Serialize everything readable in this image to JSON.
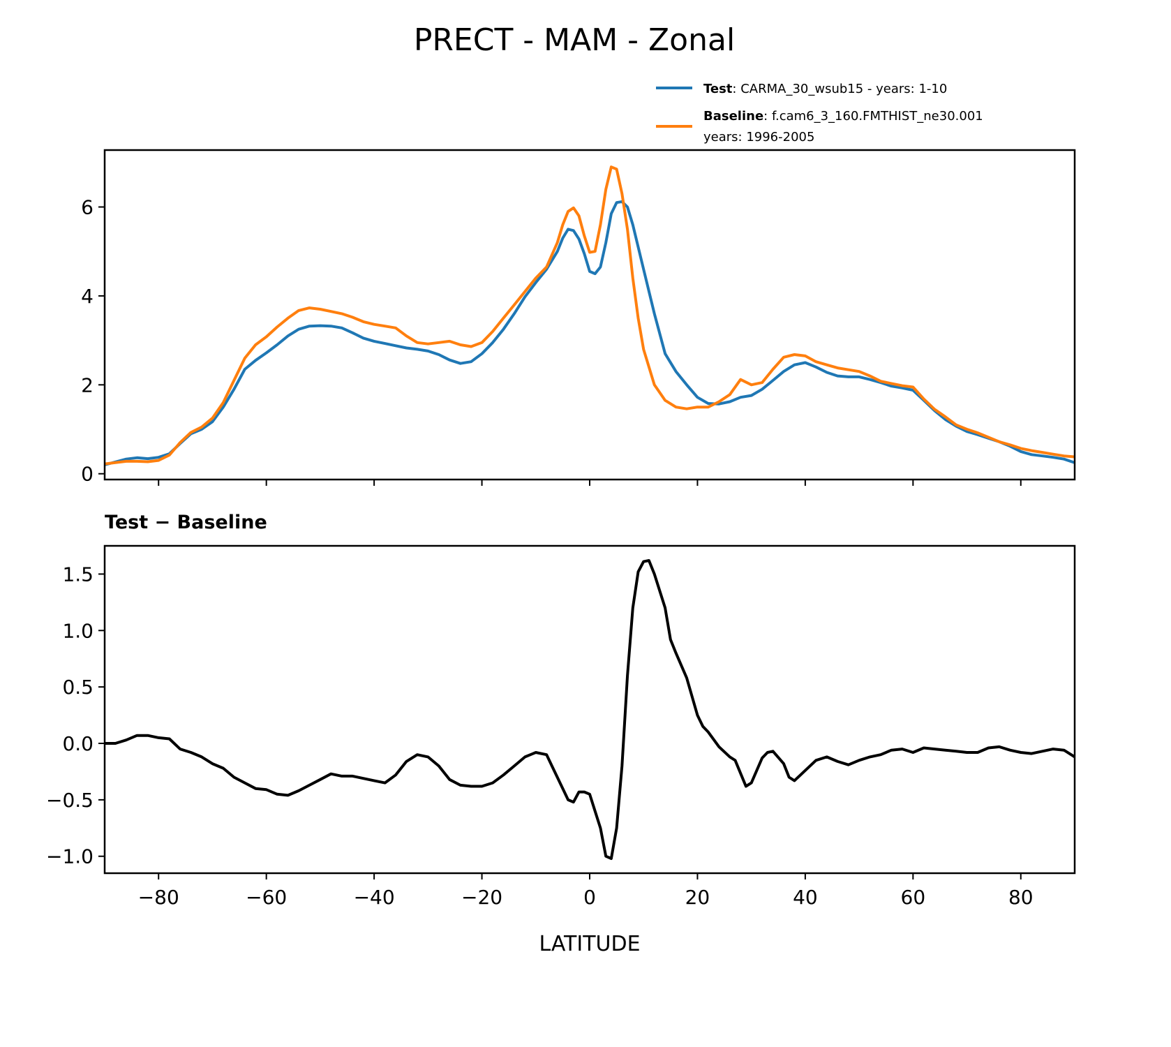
{
  "title": "PRECT - MAM - Zonal",
  "legend": {
    "test_label": "Test",
    "test_desc": ": CARMA_30_wsub15 - years: 1-10",
    "baseline_label": "Baseline",
    "baseline_desc": ": f.cam6_3_160.FMTHIST_ne30.001",
    "baseline_desc2": "years: 1996-2005"
  },
  "colors": {
    "test": "#1f77b4",
    "baseline": "#ff7f0e",
    "diff": "#000000"
  },
  "chart_data": [
    {
      "type": "line",
      "xlim": [
        -90,
        90
      ],
      "ylim": [
        -0.13,
        7.28
      ],
      "yticks": [
        0,
        2,
        4,
        6
      ],
      "ytick_labels": [
        "0",
        "2",
        "4",
        "6"
      ],
      "xticks": [
        -80,
        -60,
        -40,
        -20,
        0,
        20,
        40,
        60,
        80
      ],
      "legend_position": "above-right",
      "grid": false,
      "series": [
        {
          "name": "Test",
          "x": [
            -90,
            -86,
            -84,
            -82,
            -80,
            -78,
            -76,
            -74,
            -72,
            -70,
            -68,
            -66,
            -64,
            -62,
            -60,
            -58,
            -56,
            -54,
            -52,
            -50,
            -48,
            -46,
            -44,
            -42,
            -40,
            -38,
            -36,
            -34,
            -32,
            -30,
            -28,
            -26,
            -24,
            -22,
            -20,
            -18,
            -16,
            -14,
            -12,
            -10,
            -8,
            -6,
            -5,
            -4,
            -3,
            -2,
            -1,
            0,
            1,
            2,
            3,
            4,
            5,
            6,
            7,
            8,
            10,
            12,
            14,
            16,
            18,
            20,
            22,
            24,
            26,
            28,
            30,
            32,
            34,
            36,
            38,
            40,
            42,
            44,
            46,
            48,
            50,
            52,
            54,
            56,
            58,
            60,
            62,
            64,
            66,
            68,
            70,
            72,
            74,
            76,
            78,
            80,
            82,
            84,
            86,
            88,
            90
          ],
          "y": [
            0.2,
            0.33,
            0.36,
            0.34,
            0.37,
            0.45,
            0.68,
            0.9,
            1.0,
            1.17,
            1.5,
            1.9,
            2.35,
            2.55,
            2.72,
            2.9,
            3.1,
            3.25,
            3.32,
            3.33,
            3.32,
            3.28,
            3.17,
            3.05,
            2.98,
            2.93,
            2.88,
            2.83,
            2.8,
            2.76,
            2.68,
            2.56,
            2.48,
            2.52,
            2.7,
            2.95,
            3.25,
            3.6,
            3.98,
            4.3,
            4.6,
            5.0,
            5.3,
            5.5,
            5.47,
            5.28,
            4.95,
            4.55,
            4.5,
            4.65,
            5.2,
            5.85,
            6.1,
            6.12,
            6.0,
            5.6,
            4.6,
            3.6,
            2.7,
            2.3,
            2.0,
            1.72,
            1.58,
            1.57,
            1.62,
            1.72,
            1.76,
            1.9,
            2.1,
            2.3,
            2.45,
            2.5,
            2.4,
            2.28,
            2.2,
            2.18,
            2.18,
            2.12,
            2.05,
            1.97,
            1.93,
            1.88,
            1.65,
            1.42,
            1.22,
            1.07,
            0.95,
            0.88,
            0.8,
            0.72,
            0.62,
            0.5,
            0.43,
            0.4,
            0.37,
            0.33,
            0.25
          ]
        },
        {
          "name": "Baseline",
          "x": [
            -90,
            -86,
            -84,
            -82,
            -80,
            -78,
            -76,
            -74,
            -72,
            -70,
            -68,
            -66,
            -64,
            -62,
            -60,
            -58,
            -56,
            -54,
            -52,
            -50,
            -48,
            -46,
            -44,
            -42,
            -40,
            -38,
            -36,
            -34,
            -32,
            -30,
            -28,
            -26,
            -24,
            -22,
            -20,
            -18,
            -16,
            -14,
            -12,
            -10,
            -8,
            -6,
            -5,
            -4,
            -3,
            -2,
            -1,
            0,
            1,
            2,
            3,
            4,
            5,
            6,
            7,
            8,
            9,
            10,
            12,
            14,
            16,
            18,
            20,
            22,
            24,
            26,
            28,
            30,
            32,
            34,
            36,
            38,
            40,
            42,
            44,
            46,
            48,
            50,
            52,
            54,
            56,
            58,
            60,
            62,
            64,
            66,
            68,
            70,
            72,
            74,
            76,
            78,
            80,
            82,
            84,
            86,
            88,
            90
          ],
          "y": [
            0.22,
            0.28,
            0.28,
            0.27,
            0.3,
            0.42,
            0.7,
            0.93,
            1.05,
            1.25,
            1.6,
            2.1,
            2.6,
            2.9,
            3.08,
            3.3,
            3.5,
            3.67,
            3.73,
            3.7,
            3.65,
            3.6,
            3.52,
            3.42,
            3.36,
            3.32,
            3.28,
            3.1,
            2.95,
            2.92,
            2.95,
            2.98,
            2.9,
            2.86,
            2.95,
            3.2,
            3.5,
            3.8,
            4.1,
            4.4,
            4.65,
            5.2,
            5.6,
            5.9,
            5.98,
            5.8,
            5.35,
            4.98,
            5.0,
            5.6,
            6.4,
            6.9,
            6.85,
            6.3,
            5.5,
            4.4,
            3.5,
            2.8,
            2.0,
            1.65,
            1.5,
            1.46,
            1.5,
            1.5,
            1.62,
            1.78,
            2.12,
            2.0,
            2.05,
            2.35,
            2.62,
            2.68,
            2.65,
            2.52,
            2.45,
            2.38,
            2.34,
            2.3,
            2.2,
            2.08,
            2.03,
            1.98,
            1.95,
            1.68,
            1.45,
            1.28,
            1.1,
            1.0,
            0.92,
            0.82,
            0.72,
            0.65,
            0.57,
            0.52,
            0.48,
            0.44,
            0.4,
            0.38
          ]
        }
      ]
    },
    {
      "type": "line",
      "title": "Test − Baseline",
      "xlabel": "LATITUDE",
      "xlim": [
        -90,
        90
      ],
      "ylim": [
        -1.15,
        1.75
      ],
      "yticks": [
        -1.0,
        -0.5,
        0.0,
        0.5,
        1.0,
        1.5
      ],
      "ytick_labels": [
        "−1.0",
        "−0.5",
        "0.0",
        "0.5",
        "1.0",
        "1.5"
      ],
      "xticks": [
        -80,
        -60,
        -40,
        -20,
        0,
        20,
        40,
        60,
        80
      ],
      "xtick_labels": [
        "−80",
        "−60",
        "−40",
        "−20",
        "0",
        "20",
        "40",
        "60",
        "80"
      ],
      "grid": false,
      "series": [
        {
          "x": [
            -90,
            -88,
            -86,
            -84,
            -82,
            -80,
            -78,
            -76,
            -74,
            -72,
            -70,
            -68,
            -66,
            -64,
            -62,
            -60,
            -58,
            -56,
            -54,
            -52,
            -50,
            -48,
            -46,
            -44,
            -42,
            -40,
            -38,
            -36,
            -34,
            -32,
            -30,
            -28,
            -26,
            -24,
            -22,
            -20,
            -18,
            -16,
            -14,
            -12,
            -10,
            -8,
            -7,
            -5,
            -4,
            -3,
            -2,
            -1,
            0,
            1,
            2,
            3,
            4,
            5,
            6,
            7,
            8,
            9,
            10,
            11,
            12,
            14,
            15,
            16,
            18,
            20,
            21,
            22,
            24,
            26,
            27,
            29,
            30,
            32,
            33,
            34,
            36,
            37,
            38,
            40,
            42,
            44,
            46,
            48,
            50,
            52,
            54,
            56,
            58,
            60,
            62,
            64,
            66,
            68,
            70,
            72,
            74,
            76,
            78,
            80,
            82,
            84,
            86,
            88,
            90
          ],
          "y": [
            0.0,
            0.0,
            0.03,
            0.07,
            0.07,
            0.05,
            0.04,
            -0.05,
            -0.08,
            -0.12,
            -0.18,
            -0.22,
            -0.3,
            -0.35,
            -0.4,
            -0.41,
            -0.45,
            -0.46,
            -0.42,
            -0.37,
            -0.32,
            -0.27,
            -0.29,
            -0.29,
            -0.31,
            -0.33,
            -0.35,
            -0.28,
            -0.16,
            -0.1,
            -0.12,
            -0.2,
            -0.32,
            -0.37,
            -0.38,
            -0.38,
            -0.35,
            -0.28,
            -0.2,
            -0.12,
            -0.08,
            -0.1,
            -0.2,
            -0.4,
            -0.5,
            -0.52,
            -0.43,
            -0.43,
            -0.45,
            -0.6,
            -0.75,
            -1.0,
            -1.02,
            -0.75,
            -0.2,
            0.6,
            1.2,
            1.52,
            1.61,
            1.62,
            1.5,
            1.2,
            0.92,
            0.8,
            0.58,
            0.25,
            0.15,
            0.1,
            -0.03,
            -0.12,
            -0.15,
            -0.38,
            -0.35,
            -0.13,
            -0.08,
            -0.07,
            -0.18,
            -0.3,
            -0.33,
            -0.24,
            -0.15,
            -0.12,
            -0.16,
            -0.19,
            -0.15,
            -0.12,
            -0.1,
            -0.06,
            -0.05,
            -0.08,
            -0.04,
            -0.05,
            -0.06,
            -0.07,
            -0.08,
            -0.08,
            -0.04,
            -0.03,
            -0.06,
            -0.08,
            -0.09,
            -0.07,
            -0.05,
            -0.06,
            -0.12
          ]
        }
      ]
    }
  ]
}
